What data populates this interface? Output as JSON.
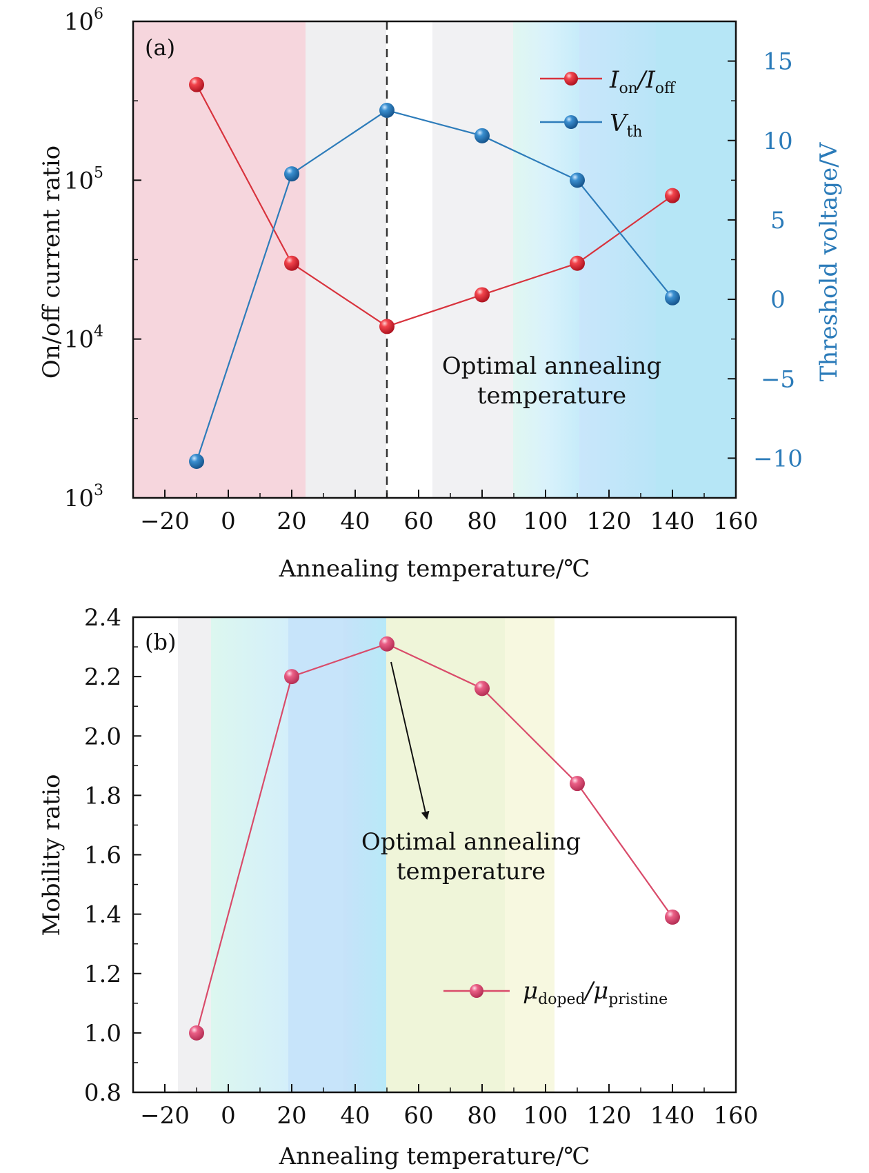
{
  "chart_data": [
    {
      "type": "line",
      "panel_label": "(a)",
      "xlabel": "Annealing temperature/℃",
      "xlim": [
        -30,
        160
      ],
      "x_ticks": [
        "−20",
        "0",
        "20",
        "40",
        "60",
        "80",
        "100",
        "120",
        "140",
        "160"
      ],
      "x_tick_values": [
        -20,
        0,
        20,
        40,
        60,
        80,
        100,
        120,
        140,
        160
      ],
      "ylabel_left": "On/off current ratio",
      "yscale_left": "log",
      "ylim_left": [
        1000,
        1000000
      ],
      "y_ticks_left": [
        {
          "base": "10",
          "exp": "3",
          "value": 1000
        },
        {
          "base": "10",
          "exp": "4",
          "value": 10000
        },
        {
          "base": "10",
          "exp": "5",
          "value": 100000
        },
        {
          "base": "10",
          "exp": "6",
          "value": 1000000
        }
      ],
      "ylabel_right": "Threshold voltage/V",
      "ylim_right": [
        -12.5,
        17.5
      ],
      "y_ticks_right": [
        "−10",
        "−5",
        "0",
        "5",
        "10",
        "15"
      ],
      "y_tick_values_right": [
        -10,
        -5,
        0,
        5,
        10,
        15
      ],
      "right_axis_color": "#2b7bb9",
      "x": [
        -10,
        20,
        50,
        80,
        110,
        140
      ],
      "series": [
        {
          "legend_main": "I",
          "legend_sub1": "on",
          "legend_mid": "/I",
          "legend_sub2": "off",
          "axis": "left",
          "color": "#e0303c",
          "values": [
            400000,
            30000,
            12000,
            19000,
            30000,
            80000
          ]
        },
        {
          "legend_main": "V",
          "legend_sub1": "th",
          "axis": "right",
          "color": "#2b7bb9",
          "values": [
            -10.2,
            7.9,
            11.9,
            10.3,
            7.5,
            0.1
          ]
        }
      ],
      "vline_x": 50,
      "annotation_line1": "Optimal annealing",
      "annotation_line2": "temperature",
      "legend_position": "top-right",
      "grid": false
    },
    {
      "type": "line",
      "panel_label": "(b)",
      "xlabel": "Annealing temperature/℃",
      "xlim": [
        -30,
        160
      ],
      "x_ticks": [
        "−20",
        "0",
        "20",
        "40",
        "60",
        "80",
        "100",
        "120",
        "140",
        "160"
      ],
      "x_tick_values": [
        -20,
        0,
        20,
        40,
        60,
        80,
        100,
        120,
        140,
        160
      ],
      "ylabel": "Mobility ratio",
      "ylim": [
        0.8,
        2.4
      ],
      "y_ticks": [
        "0.8",
        "1.0",
        "1.2",
        "1.4",
        "1.6",
        "1.8",
        "2.0",
        "2.2",
        "2.4"
      ],
      "y_tick_values": [
        0.8,
        1.0,
        1.2,
        1.4,
        1.6,
        1.8,
        2.0,
        2.2,
        2.4
      ],
      "x": [
        -10,
        20,
        50,
        80,
        110,
        140
      ],
      "series": [
        {
          "legend_main": "μ",
          "legend_sub1": "doped",
          "legend_mid": "/μ",
          "legend_sub2": "pristine",
          "color": "#d94b6a",
          "values": [
            1.0,
            2.2,
            2.31,
            2.16,
            1.84,
            1.39
          ]
        }
      ],
      "annotation_line1": "Optimal annealing",
      "annotation_line2": "temperature",
      "legend_position": "bottom-right",
      "grid": false
    }
  ]
}
